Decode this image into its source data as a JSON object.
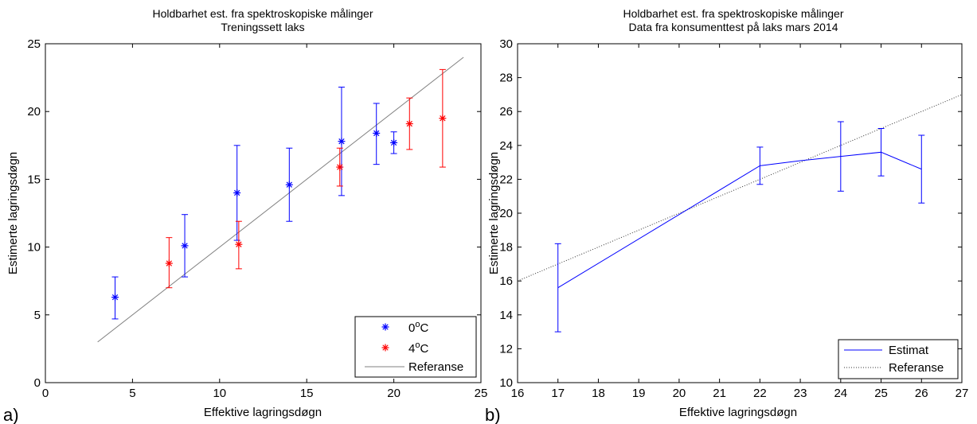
{
  "charts": {
    "a": {
      "panel_label": "a)",
      "title_line1": "Holdbarhet est. fra spektroskopiske målinger",
      "title_line2": "Treningssett laks",
      "xlabel": "Effektive lagringsdøgn",
      "ylabel": "Estimerte lagringsdøgn",
      "xticks": [
        "0",
        "5",
        "10",
        "15",
        "20",
        "25"
      ],
      "yticks": [
        "0",
        "5",
        "10",
        "15",
        "20",
        "25"
      ],
      "legend": {
        "s0_base": "0",
        "s0_sup": "o",
        "s0_unit": "C",
        "s4_base": "4",
        "s4_sup": "o",
        "s4_unit": "C",
        "ref": "Referanse"
      }
    },
    "b": {
      "panel_label": "b)",
      "title_line1": "Holdbarhet est. fra spektroskopiske målinger",
      "title_line2": "Data fra konsumenttest på laks mars 2014",
      "xlabel": "Effektive lagringsdøgn",
      "ylabel": "Estimerte lagringsdøgn",
      "xticks": [
        "16",
        "17",
        "18",
        "19",
        "20",
        "21",
        "22",
        "23",
        "24",
        "25",
        "26",
        "27"
      ],
      "yticks": [
        "10",
        "12",
        "14",
        "16",
        "18",
        "20",
        "22",
        "24",
        "26",
        "28",
        "30"
      ],
      "legend": {
        "est": "Estimat",
        "ref": "Referanse"
      }
    }
  },
  "chart_data": [
    {
      "type": "scatter",
      "title": "Holdbarhet est. fra spektroskopiske målinger\nTreningssett laks",
      "xlabel": "Effektive lagringsdøgn",
      "ylabel": "Estimerte lagringsdøgn",
      "xlim": [
        0,
        25
      ],
      "ylim": [
        0,
        25
      ],
      "grid": false,
      "legend_position": "bottom-right",
      "series": [
        {
          "name": "0oC",
          "color": "#0000ff",
          "marker": "asterisk",
          "points": [
            {
              "x": 4,
              "y": 6.3,
              "lo": 4.7,
              "hi": 7.8
            },
            {
              "x": 8,
              "y": 10.1,
              "lo": 7.8,
              "hi": 12.4
            },
            {
              "x": 11,
              "y": 14.0,
              "lo": 10.5,
              "hi": 17.5
            },
            {
              "x": 14,
              "y": 14.6,
              "lo": 11.9,
              "hi": 17.3
            },
            {
              "x": 17,
              "y": 17.8,
              "lo": 13.8,
              "hi": 21.8
            },
            {
              "x": 19,
              "y": 18.4,
              "lo": 16.1,
              "hi": 20.6
            },
            {
              "x": 20,
              "y": 17.7,
              "lo": 16.9,
              "hi": 18.5
            }
          ]
        },
        {
          "name": "4oC",
          "color": "#ff0000",
          "marker": "asterisk",
          "points": [
            {
              "x": 7.1,
              "y": 8.8,
              "lo": 7.0,
              "hi": 10.7
            },
            {
              "x": 11.1,
              "y": 10.2,
              "lo": 8.4,
              "hi": 11.9
            },
            {
              "x": 16.9,
              "y": 15.9,
              "lo": 14.5,
              "hi": 17.3
            },
            {
              "x": 20.9,
              "y": 19.1,
              "lo": 17.2,
              "hi": 21.0
            },
            {
              "x": 22.8,
              "y": 19.5,
              "lo": 15.9,
              "hi": 23.1
            }
          ]
        },
        {
          "name": "Referanse",
          "color": "#808080",
          "line": "solid",
          "x": [
            3,
            24
          ],
          "y": [
            3,
            24
          ]
        }
      ]
    },
    {
      "type": "line",
      "title": "Holdbarhet est. fra spektroskopiske målinger\nData fra konsumenttest på laks mars 2014",
      "xlabel": "Effektive lagringsdøgn",
      "ylabel": "Estimerte lagringsdøgn",
      "xlim": [
        16,
        27
      ],
      "ylim": [
        10,
        30
      ],
      "grid": false,
      "legend_position": "bottom-right",
      "series": [
        {
          "name": "Estimat",
          "color": "#0000ff",
          "line": "solid",
          "points": [
            {
              "x": 17,
              "y": 15.6,
              "lo": 13.0,
              "hi": 18.2
            },
            {
              "x": 22,
              "y": 22.8,
              "lo": 21.7,
              "hi": 23.9
            },
            {
              "x": 23,
              "y": 23.1,
              "lo": null,
              "hi": null
            },
            {
              "x": 24,
              "y": 23.35,
              "lo": 21.3,
              "hi": 25.4
            },
            {
              "x": 25,
              "y": 23.6,
              "lo": 22.2,
              "hi": 25.0
            },
            {
              "x": 26,
              "y": 22.6,
              "lo": 20.6,
              "hi": 24.6
            }
          ]
        },
        {
          "name": "Referanse",
          "color": "#333333",
          "line": "dotted",
          "x": [
            16,
            27
          ],
          "y": [
            16,
            27
          ]
        }
      ]
    }
  ]
}
